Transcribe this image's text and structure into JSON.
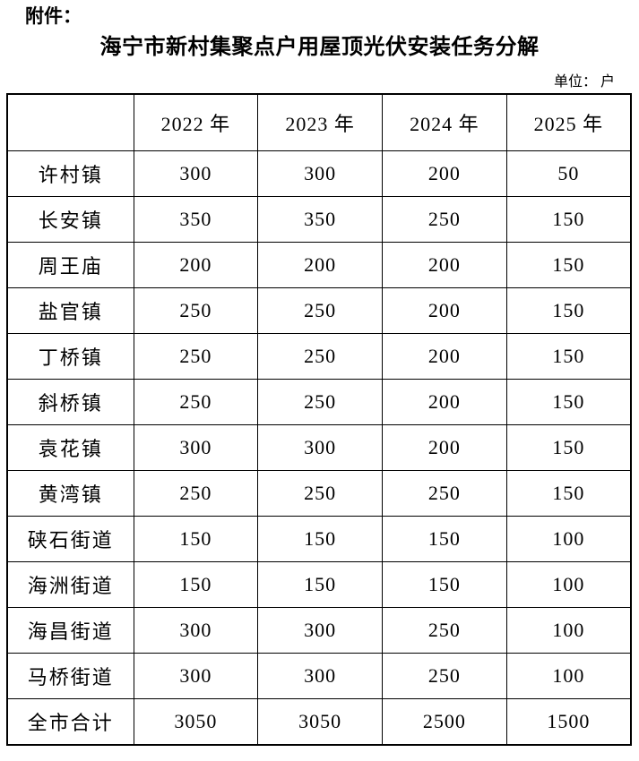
{
  "page": {
    "attachment_label": "附件：",
    "title": "海宁市新村集聚点户用屋顶光伏安装任务分解",
    "unit_note": "单位： 户"
  },
  "table": {
    "columns": [
      "",
      "2022 年",
      "2023 年",
      "2024 年",
      "2025 年"
    ],
    "rows": [
      {
        "name": "许村镇",
        "values": [
          "300",
          "300",
          "200",
          "50"
        ]
      },
      {
        "name": "长安镇",
        "values": [
          "350",
          "350",
          "250",
          "150"
        ]
      },
      {
        "name": "周王庙",
        "values": [
          "200",
          "200",
          "200",
          "150"
        ]
      },
      {
        "name": "盐官镇",
        "values": [
          "250",
          "250",
          "200",
          "150"
        ]
      },
      {
        "name": "丁桥镇",
        "values": [
          "250",
          "250",
          "200",
          "150"
        ]
      },
      {
        "name": "斜桥镇",
        "values": [
          "250",
          "250",
          "200",
          "150"
        ]
      },
      {
        "name": "袁花镇",
        "values": [
          "300",
          "300",
          "200",
          "150"
        ]
      },
      {
        "name": "黄湾镇",
        "values": [
          "250",
          "250",
          "250",
          "150"
        ]
      },
      {
        "name": "硖石街道",
        "values": [
          "150",
          "150",
          "150",
          "100"
        ]
      },
      {
        "name": "海洲街道",
        "values": [
          "150",
          "150",
          "150",
          "100"
        ]
      },
      {
        "name": "海昌街道",
        "values": [
          "300",
          "300",
          "250",
          "100"
        ]
      },
      {
        "name": "马桥街道",
        "values": [
          "300",
          "300",
          "250",
          "100"
        ]
      },
      {
        "name": "全市合计",
        "values": [
          "3050",
          "3050",
          "2500",
          "1500"
        ]
      }
    ]
  }
}
